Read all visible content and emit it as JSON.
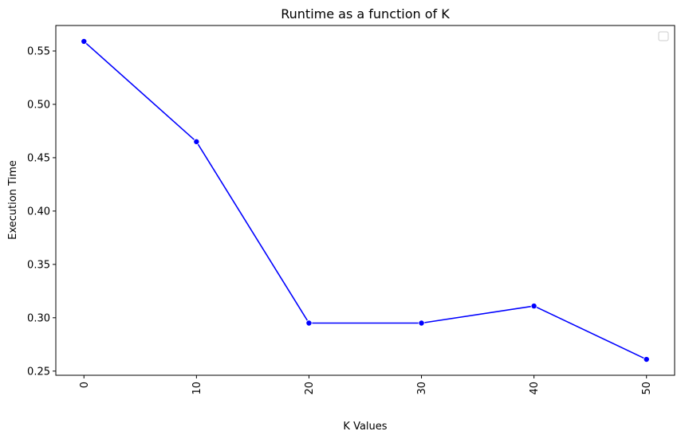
{
  "chart_data": {
    "type": "line",
    "title": "Runtime as a function of K",
    "xlabel": "K Values",
    "ylabel": "Execution Time",
    "x": [
      0,
      10,
      20,
      30,
      40,
      50
    ],
    "series": [
      {
        "values": [
          0.559,
          0.465,
          0.295,
          0.295,
          0.311,
          0.261
        ]
      }
    ],
    "xlim": [
      -2.5,
      52.5
    ],
    "ylim": [
      0.2461,
      0.5739
    ],
    "xticks": [
      0,
      10,
      20,
      30,
      40,
      50
    ],
    "xtick_labels": [
      "0",
      "10",
      "20",
      "30",
      "40",
      "50"
    ],
    "xtick_rotation": "vertical",
    "yticks": [
      0.25,
      0.3,
      0.35,
      0.4,
      0.45,
      0.5,
      0.55
    ],
    "ytick_labels": [
      "0.25",
      "0.30",
      "0.35",
      "0.40",
      "0.45",
      "0.50",
      "0.55"
    ],
    "grid": false,
    "legend": "top-right, empty",
    "markers": "circle",
    "colors": {
      "line": "#0000ff",
      "marker": "#0000ff"
    }
  }
}
